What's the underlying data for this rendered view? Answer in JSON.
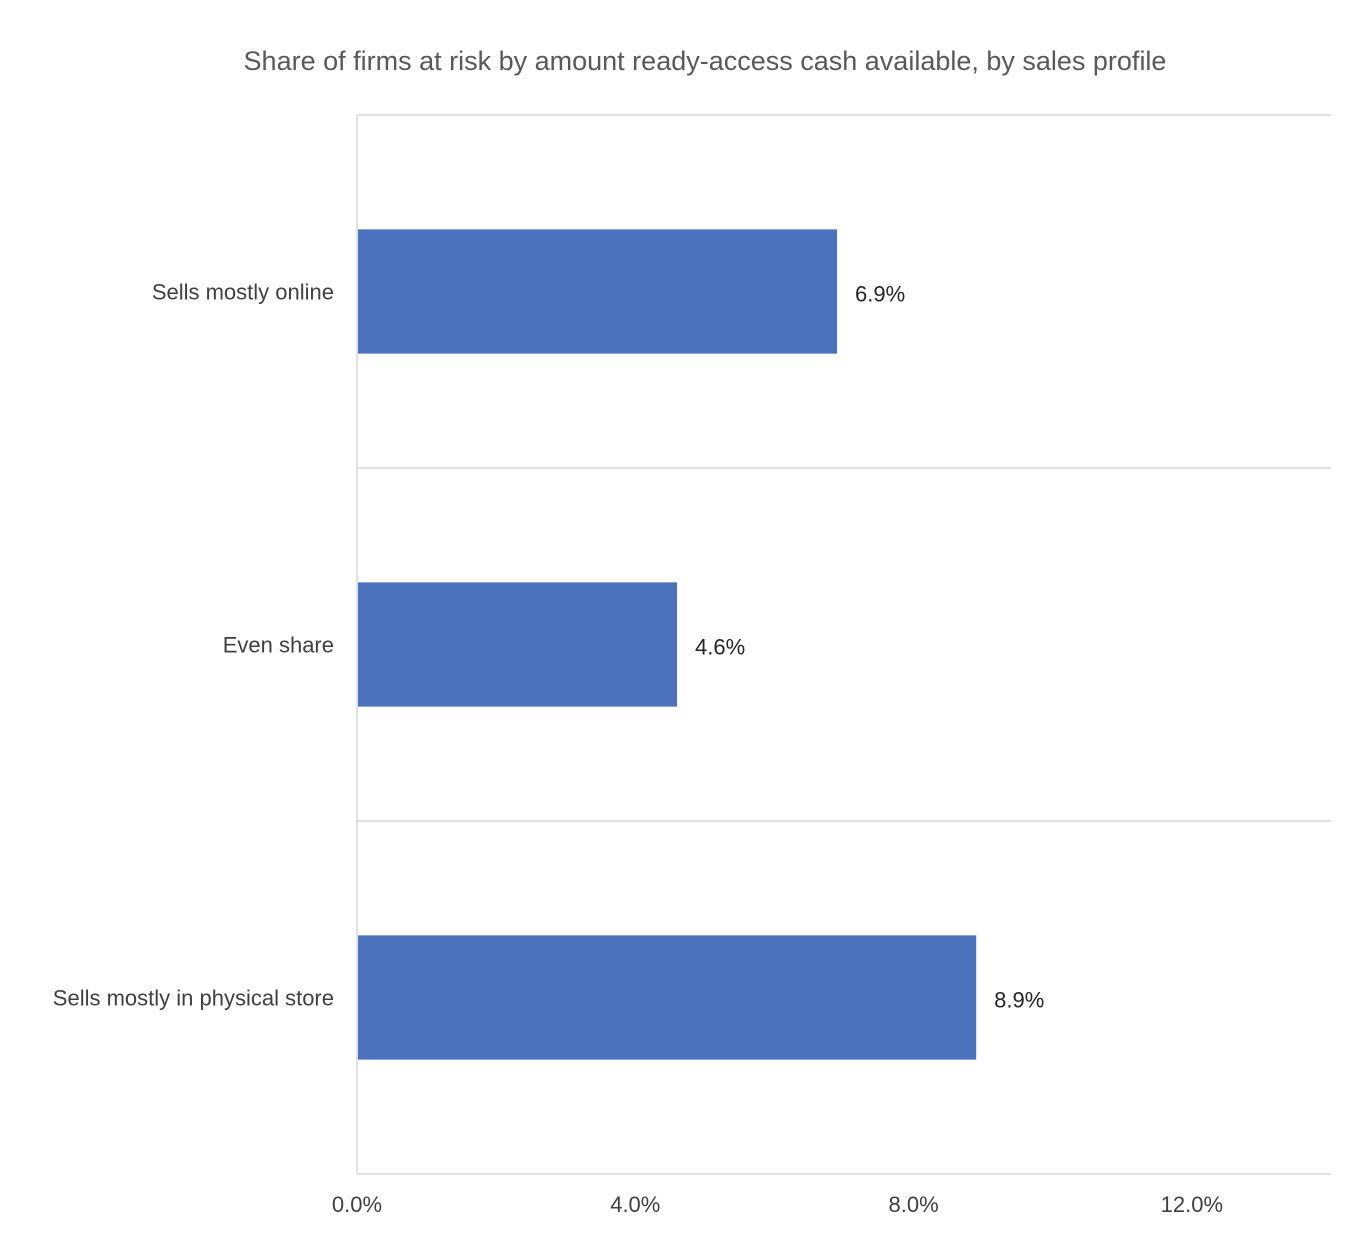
{
  "chart_data": {
    "type": "bar",
    "orientation": "horizontal",
    "title": "Share of firms at risk by amount ready-access cash available, by sales profile",
    "categories": [
      "Sells mostly online",
      "Even share",
      "Sells mostly in physical store"
    ],
    "values": [
      6.9,
      4.6,
      8.9
    ],
    "data_labels": [
      "6.9%",
      "4.6%",
      "8.9%"
    ],
    "xlim": [
      0,
      14
    ],
    "x_ticks": [
      0,
      4,
      8,
      12
    ],
    "x_tick_labels": [
      "0.0%",
      "4.0%",
      "8.0%",
      "12.0%"
    ],
    "bar_color": "#4A72BD",
    "legend": "none",
    "grid": "horizontal category separators"
  }
}
